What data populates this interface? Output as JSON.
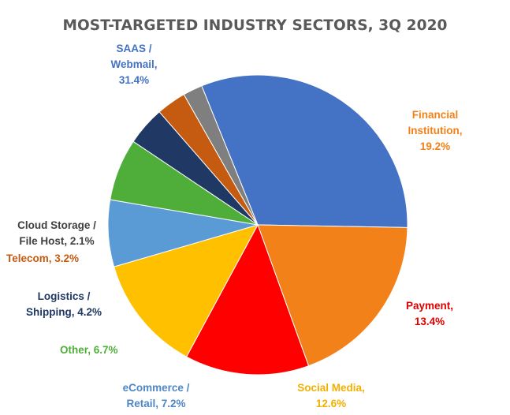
{
  "chart_data": {
    "type": "pie",
    "title": "MOST-TARGETED INDUSTRY SECTORS, 3Q 2020",
    "slices": [
      {
        "label_lines": [
          "SAAS /",
          "Webmail,",
          "31.4%"
        ],
        "value": 31.4,
        "color": "#4472C4"
      },
      {
        "label_lines": [
          "Financial",
          "Institution,",
          "19.2%"
        ],
        "value": 19.2,
        "color": "#F28119"
      },
      {
        "label_lines": [
          "Payment,",
          "13.4%"
        ],
        "value": 13.4,
        "color": "#FF0000"
      },
      {
        "label_lines": [
          "Social Media,",
          "12.6%"
        ],
        "value": 12.6,
        "color": "#FFC000"
      },
      {
        "label_lines": [
          "eCommerce /",
          "Retail, 7.2%"
        ],
        "value": 7.2,
        "color": "#5B9BD5"
      },
      {
        "label_lines": [
          "Other, 6.7%"
        ],
        "value": 6.7,
        "color": "#4FAD3A"
      },
      {
        "label_lines": [
          "Logistics /",
          "Shipping, 4.2%"
        ],
        "value": 4.2,
        "color": "#203864"
      },
      {
        "label_lines": [
          "Telecom, 3.2%"
        ],
        "value": 3.2,
        "color": "#C55A11"
      },
      {
        "label_lines": [
          "Cloud Storage /",
          "File Host, 2.1%"
        ],
        "value": 2.1,
        "color": "#7F7F7F"
      }
    ],
    "label_colors": {
      "SAAS": "#4472C4",
      "Financial": "#F28119",
      "Payment": "#E00000",
      "Social": "#F2B000",
      "eCommerce": "#4F86C6",
      "Other": "#4FAD3A",
      "Logistics": "#203864",
      "Telecom": "#C55A11",
      "Cloud": "#404040"
    }
  }
}
